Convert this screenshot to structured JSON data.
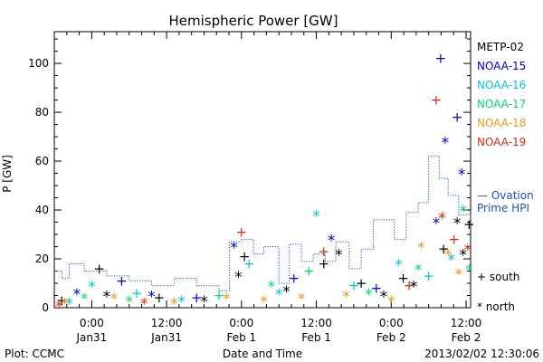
{
  "chart_data": {
    "type": "scatter",
    "title": "Hemispheric Power [GW]",
    "xlabel": "Date and Time",
    "ylabel": "P [GW]",
    "ylim": [
      0,
      113
    ],
    "xlim": [
      -0.25,
      2.53
    ],
    "x_unit": "days from 2013-01-31 00:00",
    "x_ticks": [
      {
        "x": 0.0,
        "top": "0:00",
        "bottom": "Jan31"
      },
      {
        "x": 0.5,
        "top": "12:00",
        "bottom": "Jan31"
      },
      {
        "x": 1.0,
        "top": "0:00",
        "bottom": "Feb 1"
      },
      {
        "x": 1.5,
        "top": "12:00",
        "bottom": "Feb 1"
      },
      {
        "x": 2.0,
        "top": "0:00",
        "bottom": "Feb 2"
      },
      {
        "x": 2.5,
        "top": "12:00",
        "bottom": "Feb 2"
      }
    ],
    "y_ticks": [
      0,
      20,
      40,
      60,
      80,
      100
    ],
    "grid": false,
    "legend_position": "right",
    "series": [
      {
        "name": "METP-02",
        "color": "#000000",
        "points": [
          {
            "x": -0.2,
            "y": 3,
            "m": "+"
          },
          {
            "x": 0.05,
            "y": 16,
            "m": "+"
          },
          {
            "x": 0.1,
            "y": 5,
            "m": "*"
          },
          {
            "x": 0.45,
            "y": 4,
            "m": "+"
          },
          {
            "x": 0.75,
            "y": 3,
            "m": "*"
          },
          {
            "x": 0.98,
            "y": 13,
            "m": "*"
          },
          {
            "x": 1.02,
            "y": 21,
            "m": "+"
          },
          {
            "x": 1.3,
            "y": 7,
            "m": "*"
          },
          {
            "x": 1.55,
            "y": 18,
            "m": "+"
          },
          {
            "x": 1.65,
            "y": 22,
            "m": "*"
          },
          {
            "x": 1.8,
            "y": 10,
            "m": "+"
          },
          {
            "x": 1.95,
            "y": 5,
            "m": "*"
          },
          {
            "x": 2.08,
            "y": 12,
            "m": "+"
          },
          {
            "x": 2.15,
            "y": 9,
            "m": "*"
          },
          {
            "x": 2.35,
            "y": 24,
            "m": "+"
          },
          {
            "x": 2.44,
            "y": 35,
            "m": "*"
          },
          {
            "x": 2.48,
            "y": 22,
            "m": "*"
          },
          {
            "x": 2.52,
            "y": 34,
            "m": "+"
          }
        ]
      },
      {
        "name": "NOAA-15",
        "color": "#0000c8",
        "points": [
          {
            "x": -0.1,
            "y": 6,
            "m": "*"
          },
          {
            "x": 0.2,
            "y": 11,
            "m": "+"
          },
          {
            "x": 0.4,
            "y": 5,
            "m": "*"
          },
          {
            "x": 0.7,
            "y": 4,
            "m": "+"
          },
          {
            "x": 0.95,
            "y": 25,
            "m": "*"
          },
          {
            "x": 1.35,
            "y": 12,
            "m": "+"
          },
          {
            "x": 1.6,
            "y": 28,
            "m": "*"
          },
          {
            "x": 1.9,
            "y": 8,
            "m": "+"
          },
          {
            "x": 2.3,
            "y": 35,
            "m": "*"
          },
          {
            "x": 2.33,
            "y": 102,
            "m": "+"
          },
          {
            "x": 2.36,
            "y": 68,
            "m": "*"
          },
          {
            "x": 2.44,
            "y": 78,
            "m": "+"
          },
          {
            "x": 2.47,
            "y": 55,
            "m": "*"
          }
        ]
      },
      {
        "name": "NOAA-16",
        "color": "#00c8dc",
        "points": [
          {
            "x": -0.15,
            "y": 2,
            "m": "*"
          },
          {
            "x": 0.0,
            "y": 9,
            "m": "*"
          },
          {
            "x": 0.3,
            "y": 6,
            "m": "+"
          },
          {
            "x": 0.6,
            "y": 3,
            "m": "*"
          },
          {
            "x": 1.05,
            "y": 18,
            "m": "+"
          },
          {
            "x": 1.25,
            "y": 6,
            "m": "*"
          },
          {
            "x": 1.5,
            "y": 38,
            "m": "*"
          },
          {
            "x": 1.75,
            "y": 9,
            "m": "+"
          },
          {
            "x": 2.05,
            "y": 18,
            "m": "*"
          },
          {
            "x": 2.25,
            "y": 13,
            "m": "+"
          },
          {
            "x": 2.4,
            "y": 20,
            "m": "*"
          }
        ]
      },
      {
        "name": "NOAA-17",
        "color": "#00dc78",
        "points": [
          {
            "x": -0.05,
            "y": 4,
            "m": "*"
          },
          {
            "x": 0.25,
            "y": 3,
            "m": "*"
          },
          {
            "x": 0.85,
            "y": 5,
            "m": "+"
          },
          {
            "x": 1.2,
            "y": 9,
            "m": "*"
          },
          {
            "x": 1.45,
            "y": 15,
            "m": "+"
          },
          {
            "x": 1.85,
            "y": 6,
            "m": "*"
          },
          {
            "x": 2.18,
            "y": 16,
            "m": "*"
          },
          {
            "x": 2.48,
            "y": 40,
            "m": "*"
          },
          {
            "x": 2.52,
            "y": 16,
            "m": "*"
          }
        ]
      },
      {
        "name": "NOAA-18",
        "color": "#f0961e",
        "points": [
          {
            "x": -0.18,
            "y": 2,
            "m": "*"
          },
          {
            "x": 0.15,
            "y": 4,
            "m": "*"
          },
          {
            "x": 0.55,
            "y": 2,
            "m": "*"
          },
          {
            "x": 0.9,
            "y": 4,
            "m": "*"
          },
          {
            "x": 1.15,
            "y": 3,
            "m": "*"
          },
          {
            "x": 1.4,
            "y": 4,
            "m": "*"
          },
          {
            "x": 1.7,
            "y": 5,
            "m": "*"
          },
          {
            "x": 2.0,
            "y": 3,
            "m": "*"
          },
          {
            "x": 2.2,
            "y": 25,
            "m": "*"
          },
          {
            "x": 2.38,
            "y": 22,
            "m": "*"
          },
          {
            "x": 2.45,
            "y": 14,
            "m": "*"
          }
        ]
      },
      {
        "name": "NOAA-19",
        "color": "#dc280a",
        "points": [
          {
            "x": -0.22,
            "y": 1,
            "m": "*"
          },
          {
            "x": 0.35,
            "y": 2,
            "m": "*"
          },
          {
            "x": 1.0,
            "y": 31,
            "m": "+"
          },
          {
            "x": 1.55,
            "y": 23,
            "m": "+"
          },
          {
            "x": 2.12,
            "y": 9,
            "m": "+"
          },
          {
            "x": 2.3,
            "y": 85,
            "m": "+"
          },
          {
            "x": 2.34,
            "y": 37,
            "m": "*"
          },
          {
            "x": 2.42,
            "y": 28,
            "m": "+"
          },
          {
            "x": 2.51,
            "y": 24,
            "m": "*"
          }
        ]
      },
      {
        "name": "Ovation Prime HPI",
        "type": "step",
        "style": "dotted",
        "color": "#1e50c8",
        "points": [
          {
            "x": -0.25,
            "y": 15
          },
          {
            "x": -0.2,
            "y": 12
          },
          {
            "x": -0.15,
            "y": 18
          },
          {
            "x": -0.05,
            "y": 15
          },
          {
            "x": 0.1,
            "y": 13
          },
          {
            "x": 0.25,
            "y": 11
          },
          {
            "x": 0.4,
            "y": 9
          },
          {
            "x": 0.55,
            "y": 12
          },
          {
            "x": 0.7,
            "y": 9
          },
          {
            "x": 0.85,
            "y": 7
          },
          {
            "x": 0.92,
            "y": 27
          },
          {
            "x": 1.0,
            "y": 28
          },
          {
            "x": 1.08,
            "y": 22
          },
          {
            "x": 1.15,
            "y": 25
          },
          {
            "x": 1.25,
            "y": 10
          },
          {
            "x": 1.32,
            "y": 26
          },
          {
            "x": 1.4,
            "y": 19
          },
          {
            "x": 1.48,
            "y": 22
          },
          {
            "x": 1.56,
            "y": 19
          },
          {
            "x": 1.63,
            "y": 27
          },
          {
            "x": 1.72,
            "y": 16
          },
          {
            "x": 1.8,
            "y": 24
          },
          {
            "x": 1.88,
            "y": 36
          },
          {
            "x": 1.96,
            "y": 36
          },
          {
            "x": 2.02,
            "y": 28
          },
          {
            "x": 2.1,
            "y": 39
          },
          {
            "x": 2.18,
            "y": 43
          },
          {
            "x": 2.25,
            "y": 62
          },
          {
            "x": 2.32,
            "y": 53
          },
          {
            "x": 2.38,
            "y": 46
          },
          {
            "x": 2.45,
            "y": 38
          },
          {
            "x": 2.53,
            "y": 36
          }
        ]
      }
    ],
    "legend_text": {
      "ovation_line1": "— Ovation",
      "ovation_line2": "Prime HPI",
      "south": "+ south",
      "north": "* north"
    },
    "footer": {
      "left": "Plot: CCMC",
      "center": "Date and Time",
      "right": "2013/02/02 12:30:06"
    }
  }
}
